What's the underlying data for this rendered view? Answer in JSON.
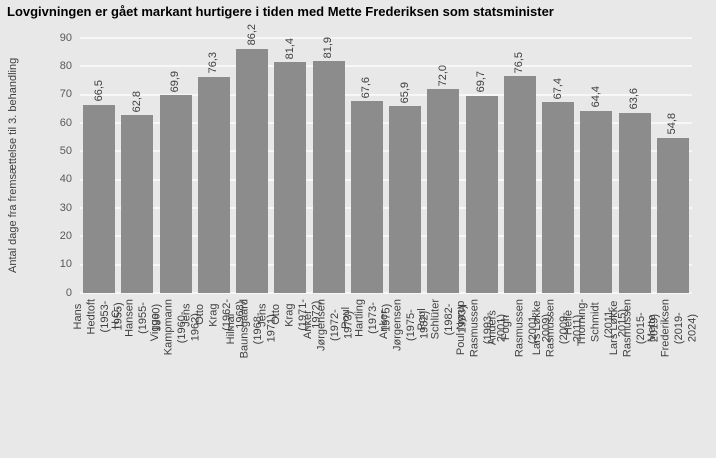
{
  "chart_data": {
    "type": "bar",
    "title": "Lovgivningen er gået markant hurtigere i tiden med Mette Frederiksen som statsminister",
    "xlabel": "",
    "ylabel": "Antal dage fra fremsættelse til 3. behandling",
    "ylim": [
      0,
      90
    ],
    "ytick_step": 10,
    "grid": true,
    "legend": "none",
    "bar_color": "#8c8c8c",
    "background_color": "#e8e8e8",
    "gridline_color": "#f7f7f6",
    "categories": [
      {
        "name": "Hans Hedtoft",
        "years": "(1953-1955)"
      },
      {
        "name": "H.C. Hansen",
        "years": "(1955-1960)"
      },
      {
        "name": "Viggo Kampmann",
        "years": "(1960-1962)"
      },
      {
        "name": "Jens Otto Krag",
        "years": "(1962-1968)"
      },
      {
        "name": "Hilmar Baunsgaard",
        "years": "(1968-1971)"
      },
      {
        "name": "Jens Otto Krag",
        "years": "(1971-1972)"
      },
      {
        "name": "Anker Jørgensen",
        "years": "(1972-1973)"
      },
      {
        "name": "Poul Hartling",
        "years": "(1973-1975)"
      },
      {
        "name": "Anker Jørgensen",
        "years": "(1975-1982)"
      },
      {
        "name": "Poul Schlüter",
        "years": "(1982-1993)"
      },
      {
        "name": "Poul Nyrup Rasmussen",
        "years": "(1993-2001)"
      },
      {
        "name": "Anders Fogh Rasmussen",
        "years": "(2001-2009)"
      },
      {
        "name": "Lars Løkke Rasmussen",
        "years": "(2009-2011)"
      },
      {
        "name": "Helle Thorning-Schmidt",
        "years": "(2011-2015)"
      },
      {
        "name": "Lars Løkke Rasmussen",
        "years": "(2015-2019)"
      },
      {
        "name": "Mette Frederiksen",
        "years": "(2019-2024)"
      }
    ],
    "values": [
      66.5,
      62.8,
      69.9,
      76.3,
      86.2,
      81.4,
      81.9,
      67.6,
      65.9,
      72.0,
      69.7,
      76.5,
      67.4,
      64.4,
      63.6,
      54.8
    ],
    "value_labels": [
      "66,5",
      "62,8",
      "69,9",
      "76,3",
      "86,2",
      "81,4",
      "81,9",
      "67,6",
      "65,9",
      "72,0",
      "69,7",
      "76,5",
      "67,4",
      "64,4",
      "63,6",
      "54,8"
    ],
    "ytick_labels": [
      "0",
      "10",
      "20",
      "30",
      "40",
      "50",
      "60",
      "70",
      "80",
      "90"
    ]
  }
}
